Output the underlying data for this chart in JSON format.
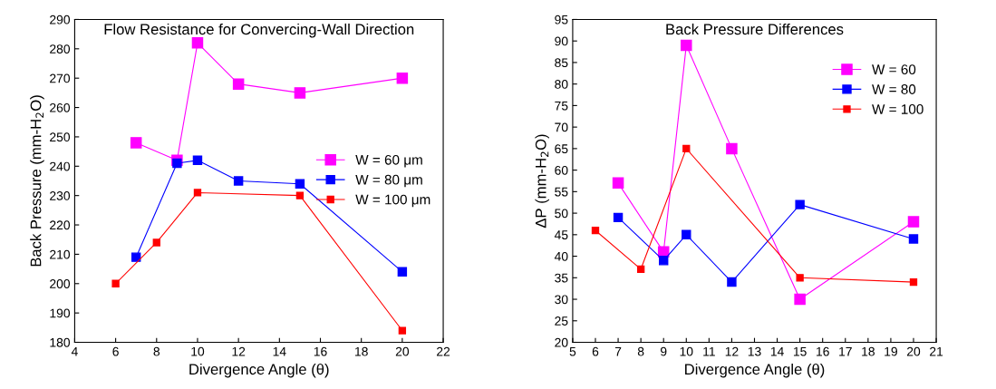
{
  "chart_data": [
    {
      "type": "line",
      "title": "Flow Resistance for Convercing-Wall Direction",
      "xlabel": "Divergence Angle (θ)",
      "ylabel": "Back Pressure (mm-H$_{2}$O)",
      "xlim": [
        4,
        22
      ],
      "xticks": [
        4,
        6,
        8,
        10,
        12,
        14,
        16,
        18,
        20,
        22
      ],
      "ylim": [
        180,
        290
      ],
      "yticks": [
        180,
        190,
        200,
        210,
        220,
        230,
        240,
        250,
        260,
        270,
        280,
        290
      ],
      "marker": "square",
      "line_style": "solid",
      "grid": false,
      "legend": "right",
      "series": [
        {
          "name": "W = 60 μm",
          "color": "#ff00ff",
          "x": [
            7,
            9,
            10,
            12,
            15,
            20
          ],
          "values": [
            248,
            242,
            282,
            268,
            265,
            270
          ]
        },
        {
          "name": "W = 80 μm",
          "color": "#0000ff",
          "x": [
            7,
            9,
            10,
            12,
            15,
            20
          ],
          "values": [
            209,
            241,
            242,
            235,
            234,
            204
          ]
        },
        {
          "name": "W = 100 μm",
          "color": "#ff0000",
          "x": [
            6,
            8,
            10,
            15,
            20
          ],
          "values": [
            200,
            214,
            231,
            230,
            184
          ]
        }
      ]
    },
    {
      "type": "line",
      "title": "Back Pressure Differences",
      "xlabel": "Divergence Angle (θ)",
      "ylabel": "ΔP (mm-H$_{2}$O)",
      "xlim": [
        5,
        21
      ],
      "xticks": [
        5,
        6,
        7,
        8,
        9,
        10,
        11,
        12,
        13,
        14,
        15,
        16,
        17,
        18,
        19,
        20,
        21
      ],
      "ylim": [
        20,
        95
      ],
      "yticks": [
        20,
        25,
        30,
        35,
        40,
        45,
        50,
        55,
        60,
        65,
        70,
        75,
        80,
        85,
        90,
        95
      ],
      "marker": "square",
      "line_style": "solid",
      "grid": false,
      "legend": "upper right",
      "series": [
        {
          "name": "W = 60",
          "color": "#ff00ff",
          "x": [
            7,
            9,
            10,
            12,
            15,
            20
          ],
          "values": [
            57,
            41,
            89,
            65,
            30,
            48
          ]
        },
        {
          "name": "W = 80",
          "color": "#0000ff",
          "x": [
            7,
            9,
            10,
            12,
            15,
            20
          ],
          "values": [
            49,
            39,
            45,
            34,
            52,
            44
          ]
        },
        {
          "name": "W = 100",
          "color": "#ff0000",
          "x": [
            6,
            8,
            10,
            15,
            20
          ],
          "values": [
            46,
            37,
            65,
            35,
            34
          ]
        }
      ]
    }
  ]
}
